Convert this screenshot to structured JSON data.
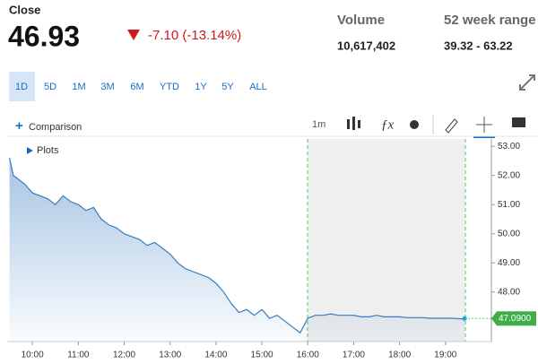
{
  "header": {
    "label": "Close",
    "price": "46.93",
    "change": "-7.10 (-13.14%)",
    "stats": [
      {
        "label": "Volume",
        "value": "10,617,402"
      },
      {
        "label": "52 week range",
        "value": "39.32 - 63.22"
      }
    ]
  },
  "ranges": [
    "1D",
    "5D",
    "1M",
    "3M",
    "6M",
    "YTD",
    "1Y",
    "5Y",
    "ALL"
  ],
  "toolbar": {
    "comparison": "Comparison",
    "interval": "1m",
    "plots": "Plots"
  },
  "chart_data": {
    "type": "area",
    "color": "#3a7bbf",
    "x": [
      570,
      575,
      580,
      590,
      600,
      610,
      620,
      630,
      640,
      650,
      660,
      670,
      680,
      690,
      700,
      710,
      720,
      730,
      740,
      750,
      760,
      770,
      780,
      790,
      800,
      810,
      820,
      830,
      840,
      850,
      860,
      870,
      880,
      890,
      900,
      910,
      920,
      930,
      940,
      950,
      960,
      970,
      980,
      990,
      1000,
      1010,
      1020,
      1030,
      1040,
      1050,
      1060,
      1070,
      1080,
      1090,
      1100,
      1110,
      1120,
      1130,
      1140,
      1150,
      1160,
      1165
    ],
    "values": [
      52.6,
      52.0,
      51.9,
      51.7,
      51.4,
      51.3,
      51.2,
      51.0,
      51.3,
      51.1,
      51.0,
      50.8,
      50.9,
      50.5,
      50.3,
      50.2,
      50.0,
      49.9,
      49.8,
      49.6,
      49.7,
      49.5,
      49.3,
      49.0,
      48.8,
      48.7,
      48.6,
      48.5,
      48.3,
      48.0,
      47.6,
      47.3,
      47.4,
      47.2,
      47.4,
      47.1,
      47.2,
      47.0,
      46.8,
      46.6,
      47.1,
      47.2,
      47.2,
      47.25,
      47.2,
      47.2,
      47.2,
      47.15,
      47.15,
      47.2,
      47.15,
      47.15,
      47.15,
      47.12,
      47.12,
      47.12,
      47.1,
      47.1,
      47.1,
      47.1,
      47.08,
      47.09
    ],
    "last_label": "47.0900",
    "xlim": [
      567,
      1200
    ],
    "xticks": [
      {
        "value": 600,
        "label": "10:00"
      },
      {
        "value": 660,
        "label": "11:00"
      },
      {
        "value": 720,
        "label": "12:00"
      },
      {
        "value": 780,
        "label": "13:00"
      },
      {
        "value": 840,
        "label": "14:00"
      },
      {
        "value": 900,
        "label": "15:00"
      },
      {
        "value": 960,
        "label": "16:00"
      },
      {
        "value": 1020,
        "label": "17:00"
      },
      {
        "value": 1080,
        "label": "18:00"
      },
      {
        "value": 1140,
        "label": "19:00"
      }
    ],
    "ylim": [
      46.3,
      53.25
    ],
    "yticks": [
      {
        "value": 48,
        "label": "48.00"
      },
      {
        "value": 49,
        "label": "49.00"
      },
      {
        "value": 50,
        "label": "50.00"
      },
      {
        "value": 51,
        "label": "51.00"
      },
      {
        "value": 52,
        "label": "52.00"
      },
      {
        "value": 53,
        "label": "53.00"
      }
    ]
  }
}
